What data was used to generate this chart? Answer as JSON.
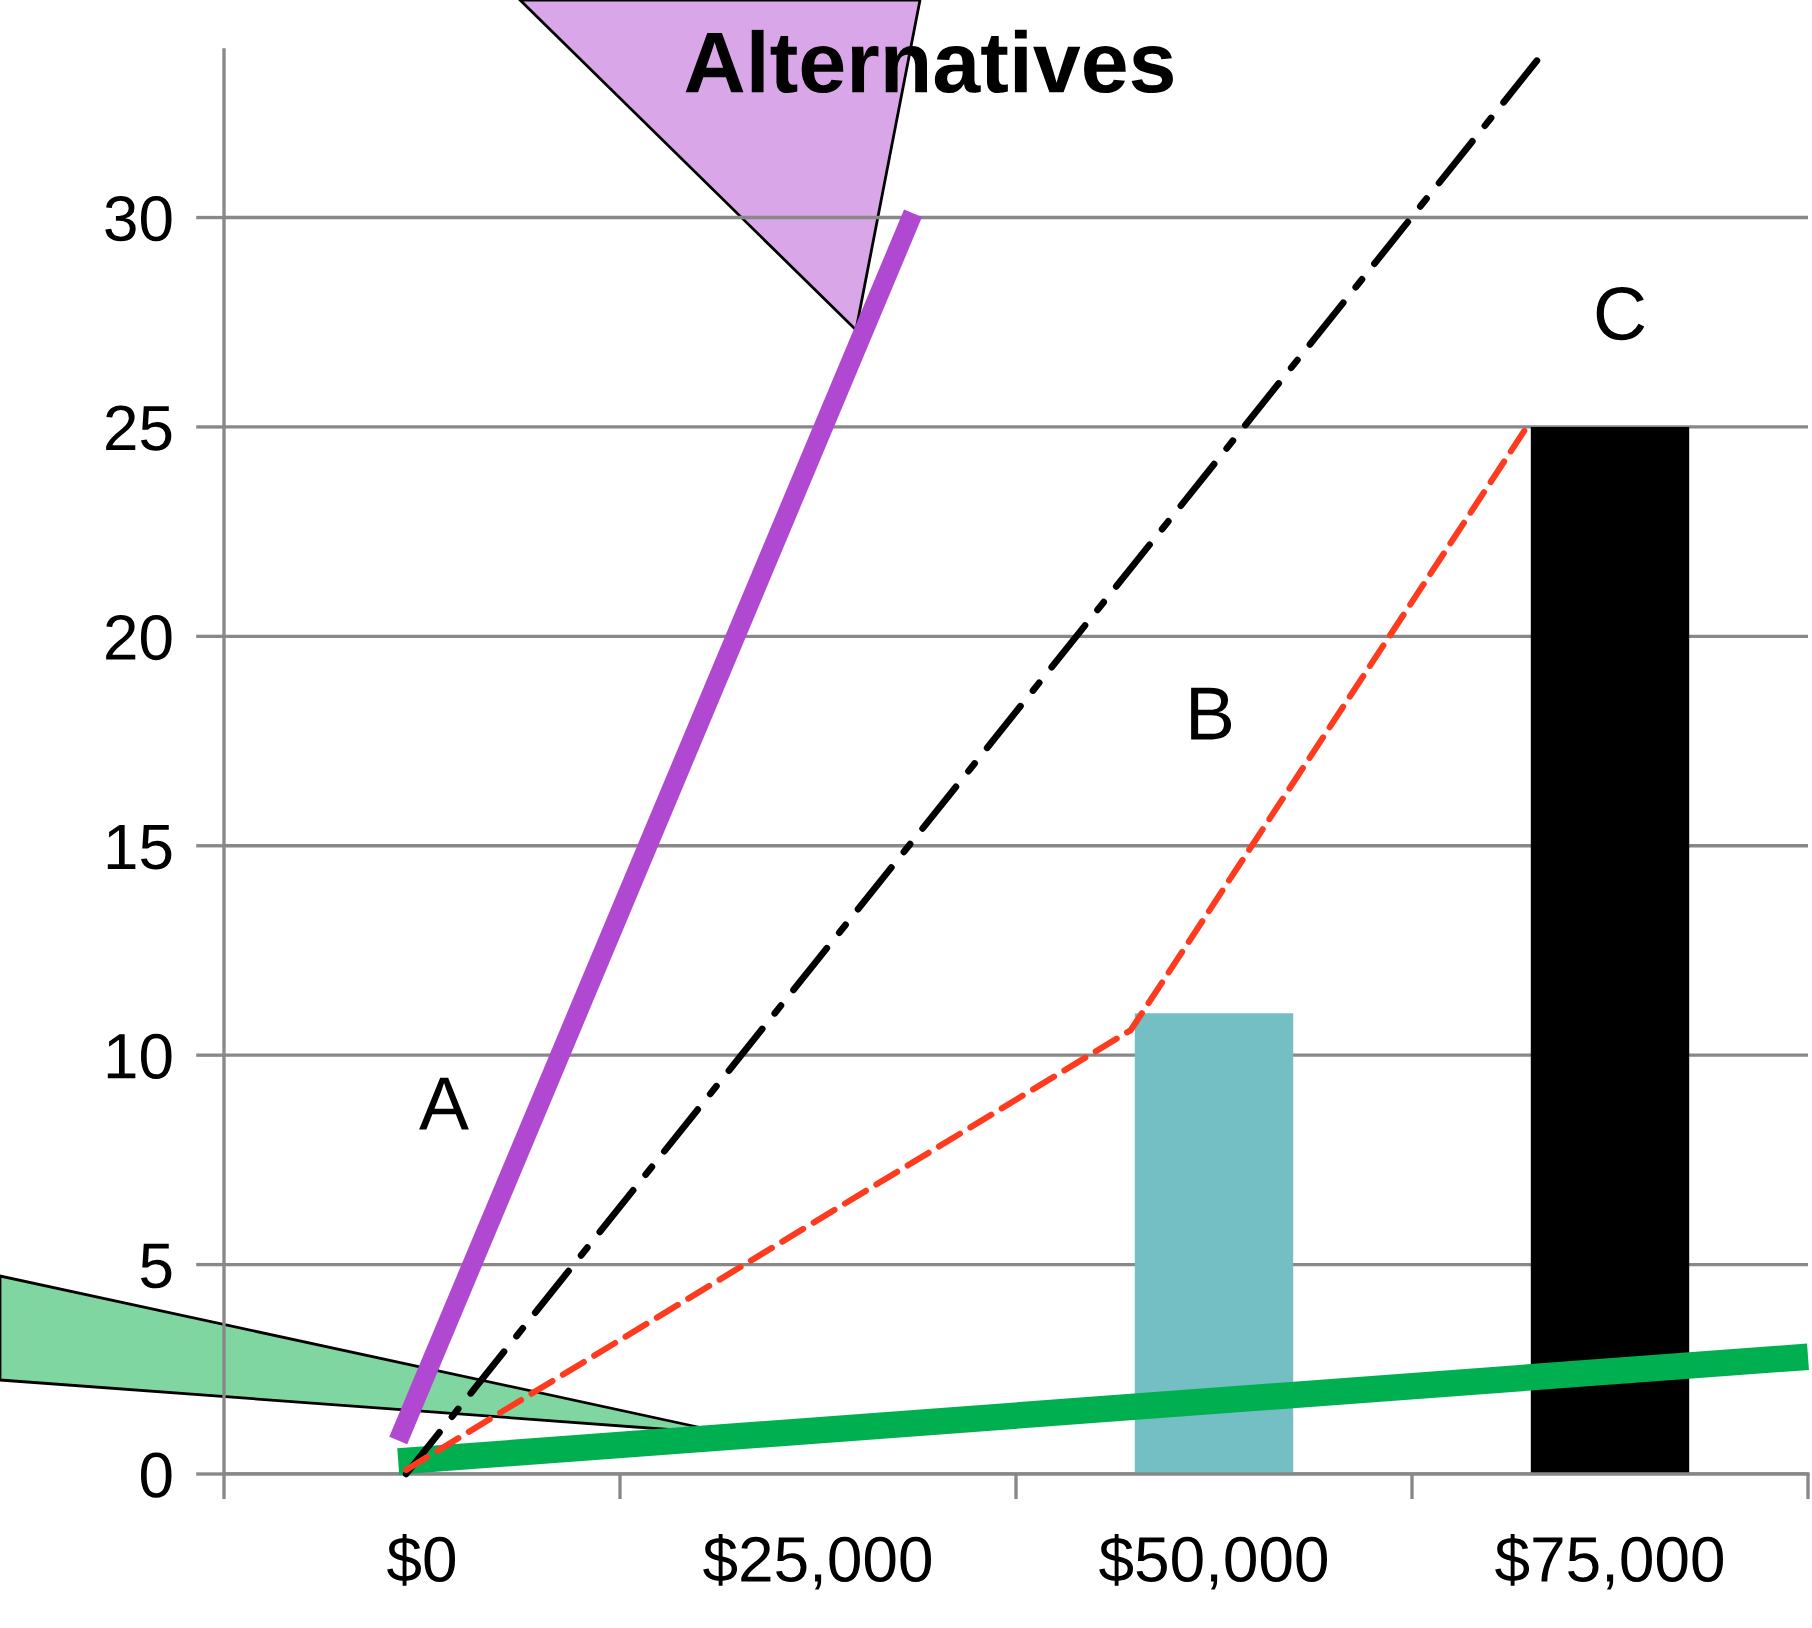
{
  "chart_data": {
    "type": "bar",
    "title": "Alternatives",
    "series": [
      {
        "x": [
          50000,
          75000
        ],
        "colors": [
          "#74bfc4",
          "#000000"
        ],
        "values": [
          11,
          25
        ]
      },
      {
        "type": "line",
        "color": "#b148d2",
        "line_style": "solid",
        "x": [
          -1500,
          31000
        ],
        "values": [
          0.8,
          30.1
        ]
      },
      {
        "type": "line",
        "color": "#000000",
        "line_style": "dashdot",
        "x": [
          -1000,
          70500
        ],
        "values": [
          0,
          33.8
        ]
      },
      {
        "type": "line",
        "color": "#ff3b1f",
        "line_style": "dashed",
        "x": [
          -1000,
          44750,
          69750
        ],
        "values": [
          0.1,
          10.6,
          25
        ]
      },
      {
        "type": "line",
        "color": "#00b050",
        "line_style": "solid",
        "x": [
          -1500,
          87500
        ],
        "values": [
          0.3,
          2.8
        ]
      }
    ],
    "xlim": [
      -12500,
      87500
    ],
    "xticks": [
      {
        "value": -12500,
        "label": null
      },
      {
        "value": 0,
        "label": "$0"
      },
      {
        "value": 12500,
        "label": null
      },
      {
        "value": 25000,
        "label": "$25,000"
      },
      {
        "value": 37500,
        "label": null
      },
      {
        "value": 50000,
        "label": "$50,000"
      },
      {
        "value": 62500,
        "label": null
      },
      {
        "value": 75000,
        "label": "$75,000"
      },
      {
        "value": 87500,
        "label": null
      }
    ],
    "ylim": [
      0,
      34
    ],
    "yticks": [
      0,
      5,
      10,
      15,
      20,
      25,
      30
    ],
    "grid": "y",
    "annotations": [
      "A",
      "B",
      "C"
    ]
  }
}
